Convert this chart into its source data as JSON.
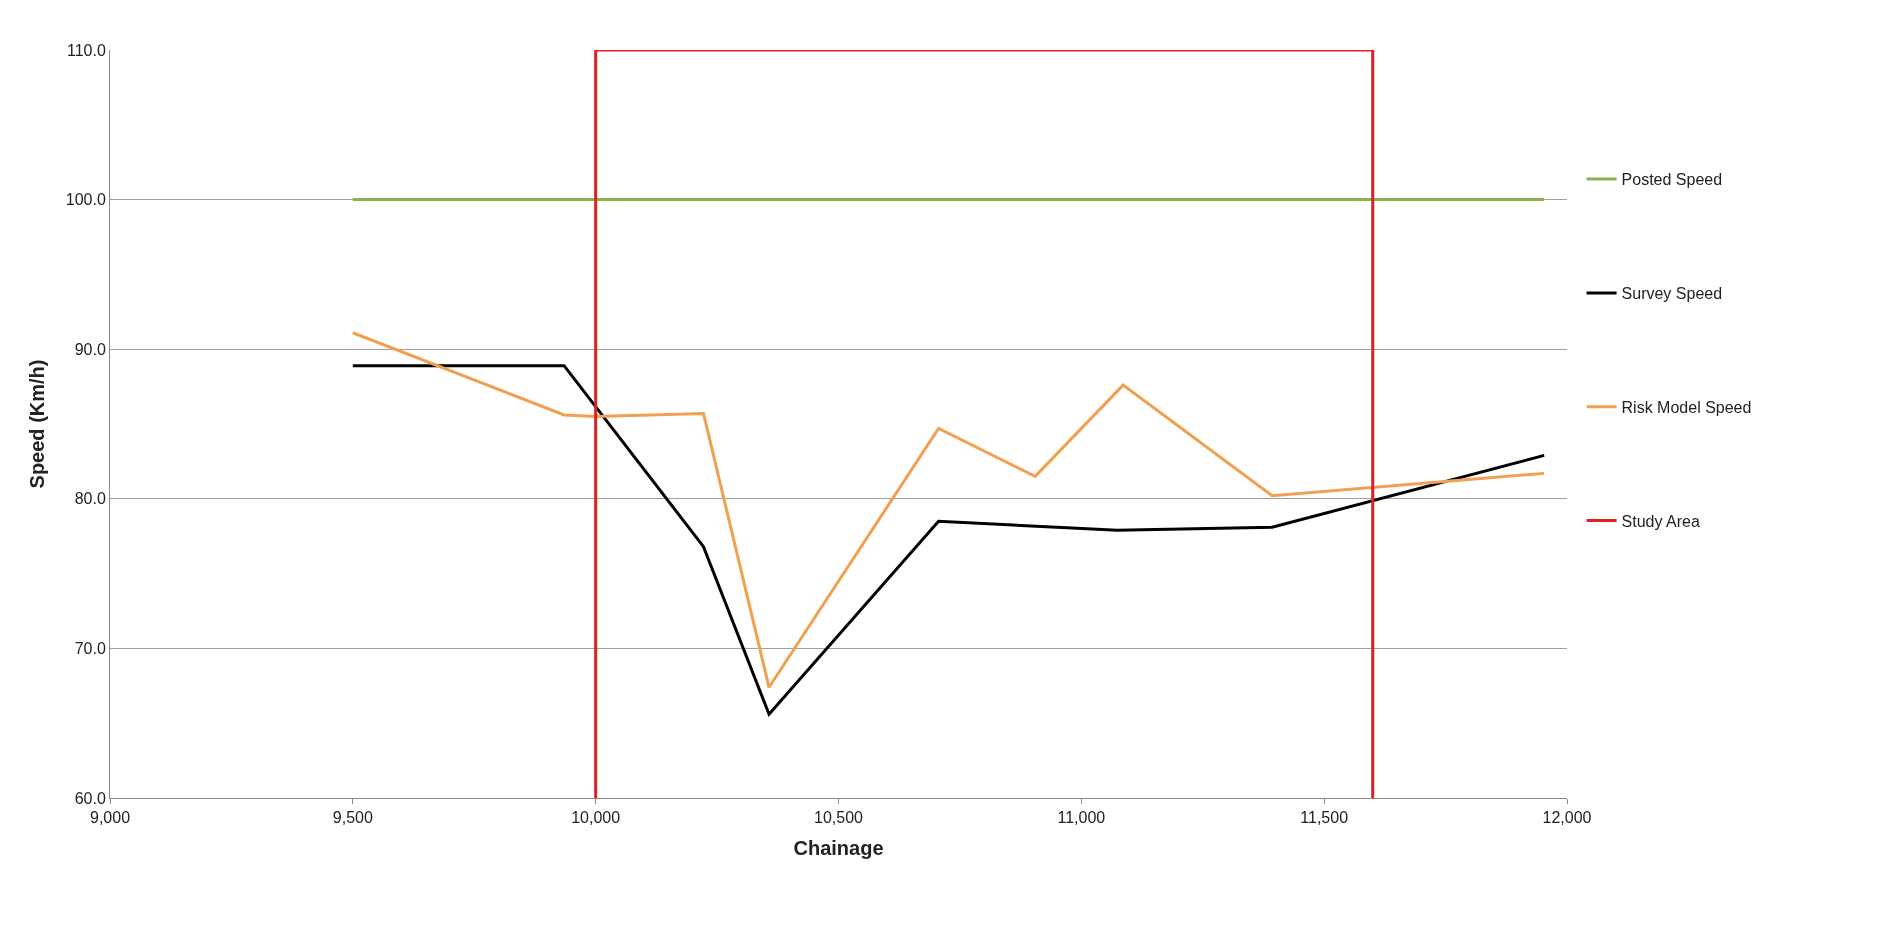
{
  "chart_data": {
    "type": "line",
    "xlabel": "Chainage",
    "ylabel": "Speed (Km/h)",
    "xlim": [
      9000,
      12000
    ],
    "xticks": [
      {
        "value": 9000,
        "label": "9,000"
      },
      {
        "value": 9500,
        "label": "9,500"
      },
      {
        "value": 10000,
        "label": "10,000"
      },
      {
        "value": 10500,
        "label": "10,500"
      },
      {
        "value": 11000,
        "label": "11,000"
      },
      {
        "value": 11500,
        "label": "11,500"
      },
      {
        "value": 12000,
        "label": "12,000"
      }
    ],
    "ylim": [
      60,
      110
    ],
    "yticks": [
      {
        "value": 60,
        "label": "60.0"
      },
      {
        "value": 70,
        "label": "70.0"
      },
      {
        "value": 80,
        "label": "80.0"
      },
      {
        "value": 90,
        "label": "90.0"
      },
      {
        "value": 100,
        "label": "100.0"
      },
      {
        "value": 110,
        "label": "110.0"
      }
    ],
    "grid": "y",
    "legend": "right",
    "marker": "none",
    "series": [
      {
        "name": "Posted Speed",
        "color": "#8cb050",
        "x": [
          9500,
          11953
        ],
        "values": [
          100,
          100
        ]
      },
      {
        "name": "Survey Speed",
        "color": "#000000",
        "x": [
          9500,
          9935,
          10222,
          10357,
          10706,
          11074,
          11393,
          11953
        ],
        "values": [
          88.9,
          88.9,
          76.8,
          65.6,
          78.5,
          77.9,
          78.1,
          82.9
        ]
      },
      {
        "name": "Risk Model Speed",
        "color": "#f0a050",
        "x": [
          9500,
          9935,
          10000,
          10222,
          10357,
          10706,
          10905,
          11086,
          11393,
          11953
        ],
        "values": [
          91.1,
          85.6,
          85.5,
          85.7,
          67.4,
          84.7,
          81.5,
          87.6,
          80.2,
          81.7
        ]
      },
      {
        "name": "Study Area",
        "color": "#e02020",
        "x": [
          10000,
          10000,
          11600,
          11600
        ],
        "values": [
          60,
          110,
          110,
          60
        ]
      }
    ]
  }
}
